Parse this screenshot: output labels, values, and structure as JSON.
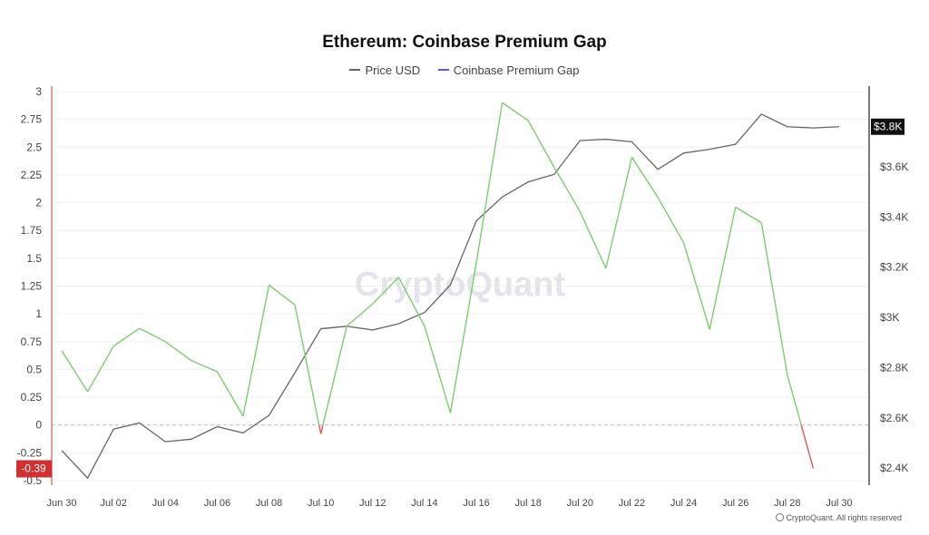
{
  "chart_data": {
    "type": "line",
    "title": "Ethereum: Coinbase Premium Gap",
    "legend_position": "top-center",
    "grid": true,
    "x": [
      "Jun 30",
      "Jul 01",
      "Jul 02",
      "Jul 03",
      "Jul 04",
      "Jul 05",
      "Jul 06",
      "Jul 07",
      "Jul 08",
      "Jul 09",
      "Jul 10",
      "Jul 11",
      "Jul 12",
      "Jul 13",
      "Jul 14",
      "Jul 15",
      "Jul 16",
      "Jul 17",
      "Jul 18",
      "Jul 19",
      "Jul 20",
      "Jul 21",
      "Jul 22",
      "Jul 23",
      "Jul 24",
      "Jul 25",
      "Jul 26",
      "Jul 27",
      "Jul 28",
      "Jul 29",
      "Jul 30"
    ],
    "x_tick_labels": [
      "Jun 30",
      "Jul 02",
      "Jul 04",
      "Jul 06",
      "Jul 08",
      "Jul 10",
      "Jul 12",
      "Jul 14",
      "Jul 16",
      "Jul 18",
      "Jul 20",
      "Jul 22",
      "Jul 24",
      "Jul 26",
      "Jul 28",
      "Jul 30"
    ],
    "left_axis": {
      "ticks": [
        "3",
        "2.75",
        "2.5",
        "2.25",
        "2",
        "1.75",
        "1.5",
        "1.25",
        "1",
        "0.75",
        "0.5",
        "0.25",
        "0",
        "-0.25",
        "-0.5"
      ],
      "range": [
        -0.5,
        3
      ]
    },
    "right_axis": {
      "ticks": [
        "$3.6K",
        "$3.4K",
        "$3.2K",
        "$3K",
        "$2.8K",
        "$2.6K",
        "$2.4K"
      ],
      "range": [
        2350,
        3900
      ]
    },
    "series": [
      {
        "name": "Price USD",
        "axis": "right",
        "color": "#666666",
        "values": [
          2470,
          2360,
          2555,
          2580,
          2505,
          2515,
          2565,
          2540,
          2610,
          2780,
          2955,
          2965,
          2950,
          2975,
          3020,
          3130,
          3385,
          3480,
          3540,
          3570,
          3705,
          3710,
          3700,
          3590,
          3655,
          3670,
          3690,
          3810,
          3760,
          3755,
          3760
        ]
      },
      {
        "name": "Coinbase Premium Gap",
        "axis": "left",
        "color": "#7bce6b",
        "negative_color": "#e05555",
        "values": [
          0.67,
          0.3,
          0.71,
          0.87,
          0.75,
          0.58,
          0.48,
          0.08,
          1.26,
          1.08,
          -0.08,
          0.89,
          1.09,
          1.33,
          0.89,
          0.11,
          1.46,
          2.9,
          2.74,
          2.32,
          1.92,
          1.41,
          2.41,
          2.05,
          1.64,
          0.86,
          1.96,
          1.82,
          0.45,
          -0.39,
          null
        ]
      }
    ],
    "current_price_label": "$3.8K",
    "current_gap_label": "-0.39",
    "watermark": "CryptoQuant"
  },
  "footer": {
    "copyright": "CryptoQuant. All rights reserved"
  }
}
